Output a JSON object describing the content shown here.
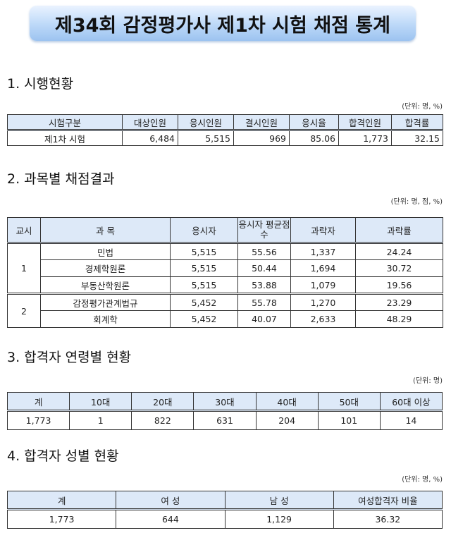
{
  "title": "제34회 감정평가사 제1차 시험 채점 통계",
  "s1": {
    "heading": "1. 시행현황",
    "unit": "(단위: 명, %)",
    "headers": [
      "시험구분",
      "대상인원",
      "응시인원",
      "결시인원",
      "응시율",
      "합격인원",
      "합격률"
    ],
    "row": [
      "제1차 시험",
      "6,484",
      "5,515",
      "969",
      "85.06",
      "1,773",
      "32.15"
    ]
  },
  "s2": {
    "heading": "2. 과목별 채점결과",
    "unit": "(단위: 명, 점, %)",
    "headers": [
      "교시",
      "과 목",
      "응시자",
      "응시자 평균점수",
      "과락자",
      "과락률"
    ],
    "groups": [
      "1",
      "2"
    ],
    "rows": [
      [
        "민법",
        "5,515",
        "55.56",
        "1,337",
        "24.24"
      ],
      [
        "경제학원론",
        "5,515",
        "50.44",
        "1,694",
        "30.72"
      ],
      [
        "부동산학원론",
        "5,515",
        "53.88",
        "1,079",
        "19.56"
      ],
      [
        "감정평가관계법규",
        "5,452",
        "55.78",
        "1,270",
        "23.29"
      ],
      [
        "회계학",
        "5,452",
        "40.07",
        "2,633",
        "48.29"
      ]
    ]
  },
  "s3": {
    "heading": "3. 합격자 연령별 현황",
    "unit": "(단위: 명)",
    "headers": [
      "계",
      "10대",
      "20대",
      "30대",
      "40대",
      "50대",
      "60대 이상"
    ],
    "row": [
      "1,773",
      "1",
      "822",
      "631",
      "204",
      "101",
      "14"
    ]
  },
  "s4": {
    "heading": "4. 합격자 성별 현황",
    "unit": "(단위: 명, %)",
    "headers": [
      "계",
      "여 성",
      "남 성",
      "여성합격자 비율"
    ],
    "row": [
      "1,773",
      "644",
      "1,129",
      "36.32"
    ]
  }
}
